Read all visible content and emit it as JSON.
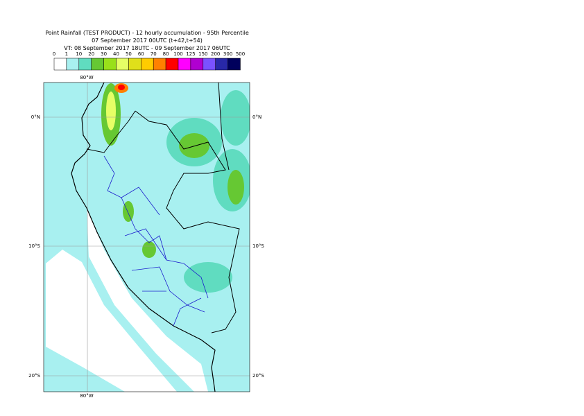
{
  "header": {
    "title": "Point Rainfall (TEST PRODUCT) - 12 hourly accumulation - 95th Percentile",
    "subtitle": "07 September 2017 00UTC (t+42,t+54)",
    "valid_time": "VT: 08 September 2017 18UTC - 09 September 2017 06UTC"
  },
  "legend": {
    "bounds": [
      "0",
      "1",
      "10",
      "20",
      "30",
      "40",
      "50",
      "60",
      "70",
      "80",
      "100",
      "125",
      "150",
      "200",
      "300",
      "500"
    ],
    "colors": [
      "#ffffff",
      "#a8f0f0",
      "#60dcc0",
      "#66c833",
      "#99e01a",
      "#e6ff66",
      "#e0e01a",
      "#ffcc00",
      "#ff8000",
      "#ff0000",
      "#ff00ff",
      "#b000d0",
      "#7a52ff",
      "#2828a8",
      "#00005c"
    ]
  },
  "map": {
    "lon_labels": [
      "80°W"
    ],
    "lat_labels": [
      "0°N",
      "10°S",
      "20°S"
    ]
  }
}
